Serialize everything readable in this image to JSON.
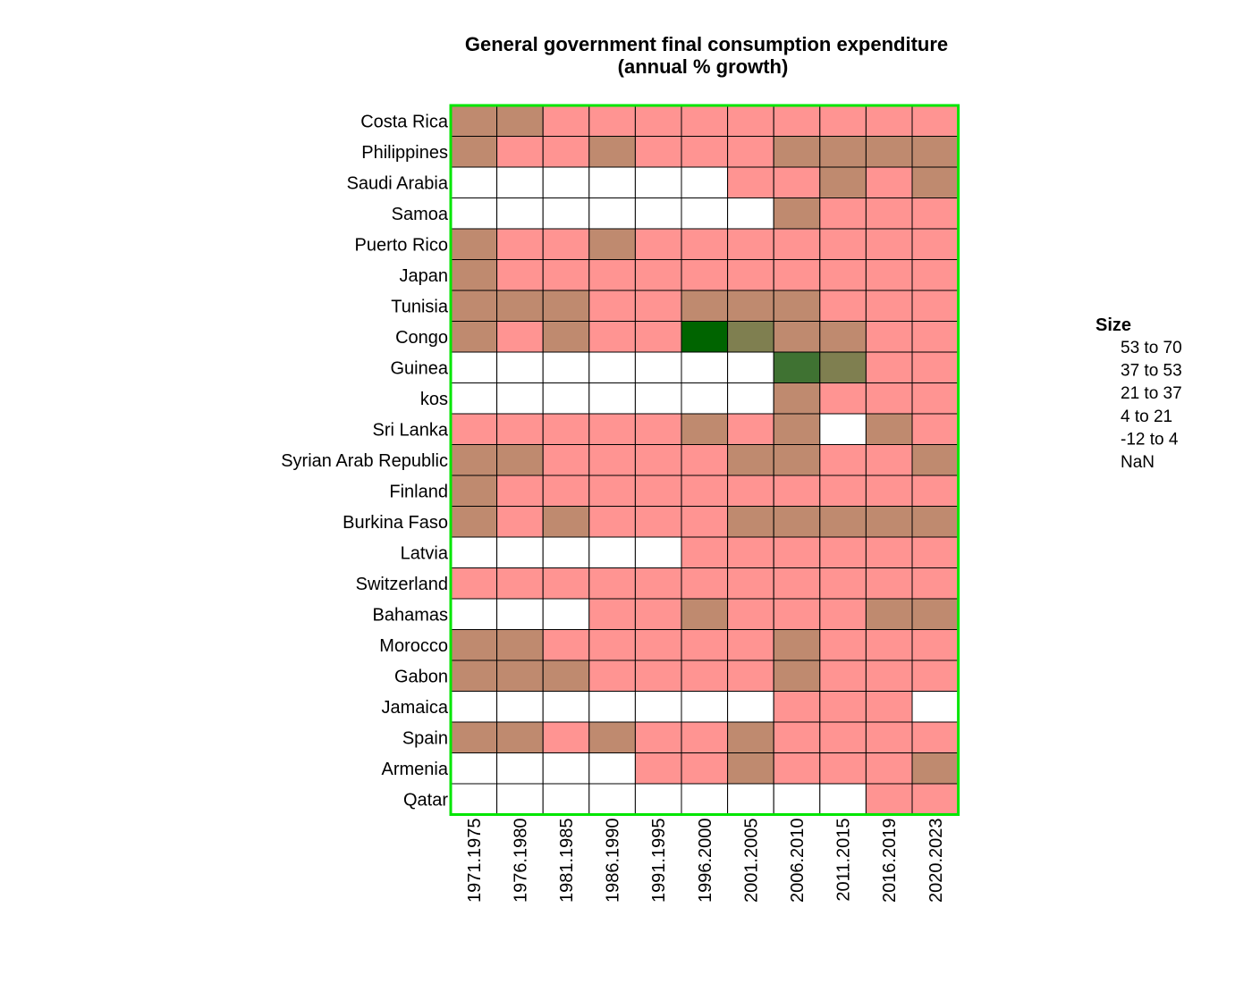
{
  "chart_data": {
    "type": "heatmap",
    "title_lines": [
      "General government final consumption expenditure",
      "(annual % growth)"
    ],
    "columns": [
      "1971.1975",
      "1976.1980",
      "1981.1985",
      "1986.1990",
      "1991.1995",
      "1996.2000",
      "2001.2005",
      "2006.2010",
      "2011.2015",
      "2016.2019",
      "2020.2023"
    ],
    "rows": [
      "Costa Rica",
      "Philippines",
      "Saudi Arabia",
      "Samoa",
      "Puerto Rico",
      "Japan",
      "Tunisia",
      "Congo",
      "Guinea",
      "kos",
      "Sri Lanka",
      "Syrian Arab Republic",
      "Finland",
      "Burkina Faso",
      "Latvia",
      "Switzerland",
      "Bahamas",
      "Morocco",
      "Gabon",
      "Jamaica",
      "Spain",
      "Armenia",
      "Qatar"
    ],
    "bin_index_grid": [
      [
        3,
        3,
        4,
        4,
        4,
        4,
        4,
        4,
        4,
        4,
        4
      ],
      [
        3,
        4,
        4,
        3,
        4,
        4,
        4,
        3,
        3,
        3,
        3
      ],
      [
        5,
        5,
        5,
        5,
        5,
        5,
        4,
        4,
        3,
        4,
        3
      ],
      [
        5,
        5,
        5,
        5,
        5,
        5,
        5,
        3,
        4,
        4,
        4
      ],
      [
        3,
        4,
        4,
        3,
        4,
        4,
        4,
        4,
        4,
        4,
        4
      ],
      [
        3,
        4,
        4,
        4,
        4,
        4,
        4,
        4,
        4,
        4,
        4
      ],
      [
        3,
        3,
        3,
        4,
        4,
        3,
        3,
        3,
        4,
        4,
        4
      ],
      [
        3,
        4,
        3,
        4,
        4,
        0,
        2,
        3,
        3,
        4,
        4
      ],
      [
        5,
        5,
        5,
        5,
        5,
        5,
        5,
        1,
        2,
        4,
        4
      ],
      [
        5,
        5,
        5,
        5,
        5,
        5,
        5,
        3,
        4,
        4,
        4
      ],
      [
        4,
        4,
        4,
        4,
        4,
        3,
        4,
        3,
        5,
        3,
        4
      ],
      [
        3,
        3,
        4,
        4,
        4,
        4,
        3,
        3,
        4,
        4,
        3
      ],
      [
        3,
        4,
        4,
        4,
        4,
        4,
        4,
        4,
        4,
        4,
        4
      ],
      [
        3,
        4,
        3,
        4,
        4,
        4,
        3,
        3,
        3,
        3,
        3
      ],
      [
        5,
        5,
        5,
        5,
        5,
        4,
        4,
        4,
        4,
        4,
        4
      ],
      [
        4,
        4,
        4,
        4,
        4,
        4,
        4,
        4,
        4,
        4,
        4
      ],
      [
        5,
        5,
        5,
        4,
        4,
        3,
        4,
        4,
        4,
        3,
        3
      ],
      [
        3,
        3,
        4,
        4,
        4,
        4,
        4,
        3,
        4,
        4,
        4
      ],
      [
        3,
        3,
        3,
        4,
        4,
        4,
        4,
        3,
        4,
        4,
        4
      ],
      [
        5,
        5,
        5,
        5,
        5,
        5,
        5,
        4,
        4,
        4,
        5
      ],
      [
        3,
        3,
        4,
        3,
        4,
        4,
        3,
        4,
        4,
        4,
        4
      ],
      [
        5,
        5,
        5,
        5,
        4,
        4,
        3,
        4,
        4,
        4,
        3
      ],
      [
        5,
        5,
        5,
        5,
        5,
        5,
        5,
        5,
        5,
        4,
        4
      ]
    ],
    "legend": {
      "title": "Size",
      "bins": [
        {
          "label": "53  to  70",
          "color": "#006400"
        },
        {
          "label": "37  to  53",
          "color": "#3f7232"
        },
        {
          "label": "21  to  37",
          "color": "#7f7f50"
        },
        {
          "label": "4  to  21",
          "color": "#bf8a6f"
        },
        {
          "label": "-12  to  4",
          "color": "#ff9492"
        },
        {
          "label": "NaN",
          "color": "#ffffff"
        }
      ]
    },
    "border_color": "#00e600"
  }
}
